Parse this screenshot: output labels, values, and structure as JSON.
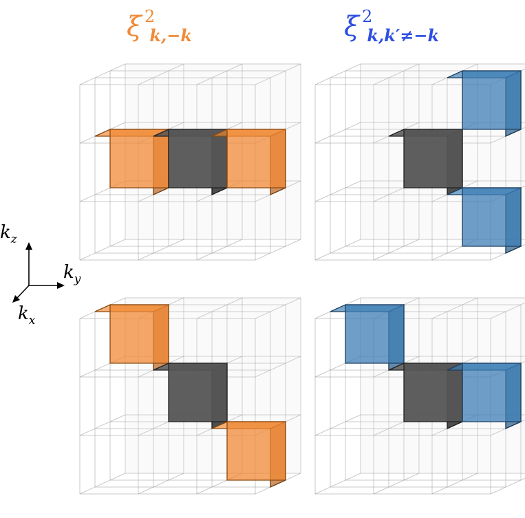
{
  "titles": {
    "left": {
      "base": "ξ",
      "sup": "2",
      "sub": "k,−k",
      "color": "#f08a36"
    },
    "right": {
      "base": "ξ",
      "sup": "2",
      "sub": "k,k′≠−k",
      "color": "#2d4fe0"
    }
  },
  "axes": {
    "z": {
      "base": "k",
      "sub": "z"
    },
    "y": {
      "base": "k",
      "sub": "y"
    },
    "x": {
      "base": "k",
      "sub": "x"
    }
  },
  "colors": {
    "orange_fill": "#f08a36",
    "orange_edge": "#8a4a10",
    "blue_fill": "#3f7fb5",
    "blue_edge": "#1c3f60",
    "center_fill": "#555555",
    "center_edge": "#222222",
    "grid_edge": "#9a9a9a"
  },
  "panels": [
    {
      "name": "top-left",
      "highlight": "orange",
      "cells": [
        [
          0,
          -1,
          0
        ],
        [
          0,
          1,
          0
        ]
      ]
    },
    {
      "name": "top-right",
      "highlight": "blue",
      "cells": [
        [
          1,
          1,
          1
        ],
        [
          -1,
          1,
          -1
        ]
      ]
    },
    {
      "name": "bottom-left",
      "highlight": "orange",
      "cells": [
        [
          0,
          -1,
          1
        ],
        [
          0,
          1,
          -1
        ]
      ]
    },
    {
      "name": "bottom-right",
      "highlight": "blue",
      "cells": [
        [
          0,
          -1,
          1
        ],
        [
          0,
          1,
          0
        ]
      ]
    }
  ]
}
